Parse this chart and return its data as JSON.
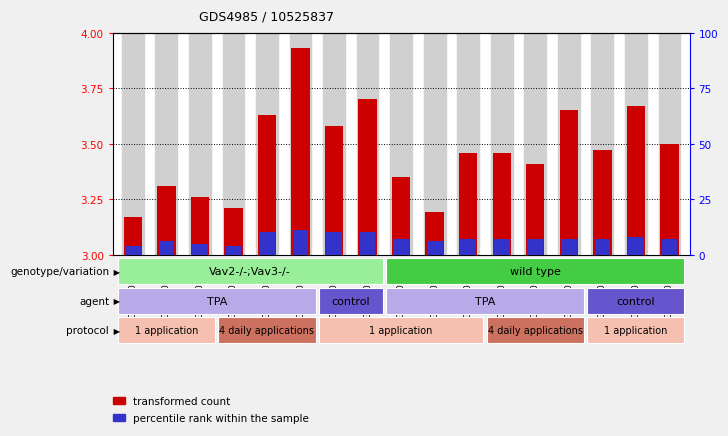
{
  "title": "GDS4985 / 10525837",
  "samples": [
    "GSM1003242",
    "GSM1003243",
    "GSM1003244",
    "GSM1003245",
    "GSM1003246",
    "GSM1003247",
    "GSM1003240",
    "GSM1003241",
    "GSM1003251",
    "GSM1003252",
    "GSM1003253",
    "GSM1003254",
    "GSM1003255",
    "GSM1003256",
    "GSM1003248",
    "GSM1003249",
    "GSM1003250"
  ],
  "red_values": [
    3.17,
    3.31,
    3.26,
    3.21,
    3.63,
    3.93,
    3.58,
    3.7,
    3.35,
    3.19,
    3.46,
    3.46,
    3.41,
    3.65,
    3.47,
    3.67,
    3.5
  ],
  "blue_values": [
    3.04,
    3.06,
    3.05,
    3.04,
    3.1,
    3.11,
    3.1,
    3.1,
    3.07,
    3.06,
    3.07,
    3.07,
    3.07,
    3.07,
    3.07,
    3.08,
    3.07
  ],
  "ymin": 3.0,
  "ymax": 4.0,
  "y2min": 0,
  "y2max": 100,
  "yticks": [
    3.0,
    3.25,
    3.5,
    3.75,
    4.0
  ],
  "y2ticks": [
    0,
    25,
    50,
    75,
    100
  ],
  "bar_color": "#cc0000",
  "blue_color": "#3333cc",
  "bar_width": 0.55,
  "fig_bg": "#f0f0f0",
  "plot_bg": "#ffffff",
  "col_bg": "#d0d0d0",
  "geno_data": [
    {
      "start": 0,
      "end": 7,
      "label": "Vav2-/-;Vav3-/-",
      "color": "#99ee99"
    },
    {
      "start": 8,
      "end": 16,
      "label": "wild type",
      "color": "#44cc44"
    }
  ],
  "agent_data": [
    {
      "start": 0,
      "end": 5,
      "label": "TPA",
      "color": "#b8aae8"
    },
    {
      "start": 6,
      "end": 7,
      "label": "control",
      "color": "#6655cc"
    },
    {
      "start": 8,
      "end": 13,
      "label": "TPA",
      "color": "#b8aae8"
    },
    {
      "start": 14,
      "end": 16,
      "label": "control",
      "color": "#6655cc"
    }
  ],
  "protocol_data": [
    {
      "start": 0,
      "end": 2,
      "label": "1 application",
      "color": "#f5c0b0"
    },
    {
      "start": 3,
      "end": 5,
      "label": "4 daily applications",
      "color": "#cc7060"
    },
    {
      "start": 6,
      "end": 10,
      "label": "1 application",
      "color": "#f5c0b0"
    },
    {
      "start": 11,
      "end": 13,
      "label": "4 daily applications",
      "color": "#cc7060"
    },
    {
      "start": 14,
      "end": 16,
      "label": "1 application",
      "color": "#f5c0b0"
    }
  ],
  "row_labels": [
    "genotype/variation",
    "agent",
    "protocol"
  ],
  "legend_items": [
    {
      "color": "#cc0000",
      "label": "transformed count"
    },
    {
      "color": "#3333cc",
      "label": "percentile rank within the sample"
    }
  ]
}
